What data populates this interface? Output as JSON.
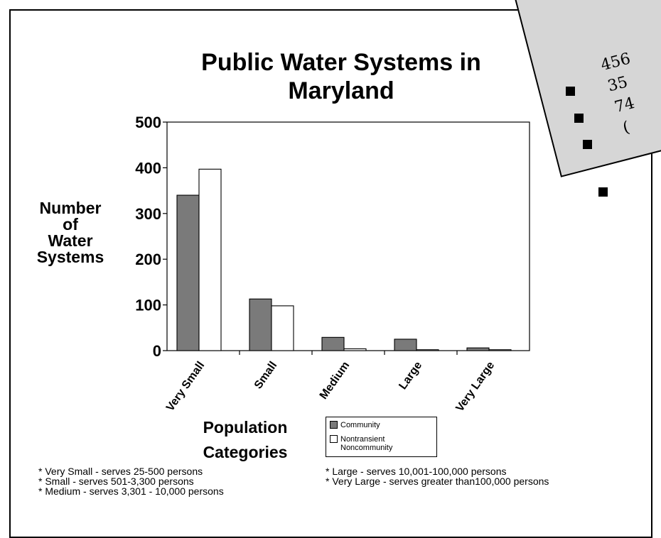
{
  "slide": {
    "card_lines": [
      "456",
      "35",
      "74",
      "("
    ]
  },
  "chart_data": {
    "type": "bar",
    "title": "Public Water Systems in Maryland",
    "title_lines": [
      "Public Water Systems in",
      "Maryland"
    ],
    "ylabel": "Number of Water Systems",
    "ylabel_lines": [
      "Number",
      "of",
      "Water",
      "Systems"
    ],
    "xlabel": "Population Categories",
    "xlabel_lines": [
      "Population",
      "Categories"
    ],
    "categories": [
      "Very Small",
      "Small",
      "Medium",
      "Large",
      "Very Large"
    ],
    "series": [
      {
        "name": "Community",
        "values": [
          340,
          113,
          29,
          25,
          6
        ]
      },
      {
        "name": "Nontransient Noncommunity",
        "values": [
          397,
          98,
          4,
          2,
          2
        ]
      }
    ],
    "yticks": [
      "0",
      "100",
      "200",
      "300",
      "400",
      "500"
    ],
    "ylim": [
      0,
      500
    ],
    "grid": false,
    "legend_position": "bottom-center",
    "legend_items": [
      {
        "label_lines": [
          "Community"
        ],
        "color": "#7a7a7a"
      },
      {
        "label_lines": [
          "Nontransient",
          "Noncommunity"
        ],
        "color": "#ffffff"
      }
    ],
    "colors": {
      "community": "#7a7a7a",
      "nontransient": "#ffffff"
    },
    "footnotes_left": [
      "* Very Small - serves 25-500 persons",
      "* Small - serves 501-3,300 persons",
      "* Medium - serves 3,301 - 10,000 persons"
    ],
    "footnotes_right": [
      "* Large - serves 10,001-100,000 persons",
      "* Very Large - serves greater than100,000 persons"
    ]
  }
}
